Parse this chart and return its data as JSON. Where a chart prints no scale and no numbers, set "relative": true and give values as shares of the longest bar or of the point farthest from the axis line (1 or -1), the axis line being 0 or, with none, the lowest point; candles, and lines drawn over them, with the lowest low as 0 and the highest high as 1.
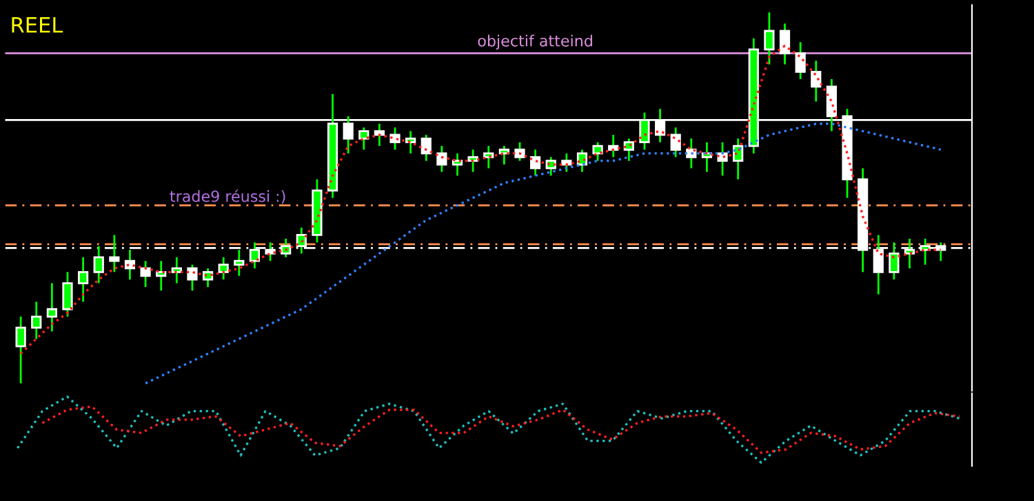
{
  "chart_data": [
    {
      "type": "candlestick",
      "relative": true,
      "categories": [
        null,
        null,
        null,
        null,
        null,
        null,
        null,
        null,
        null,
        null,
        null,
        null,
        null,
        null,
        null,
        null,
        null,
        null,
        null,
        null,
        null,
        null,
        null,
        null,
        null,
        null,
        null,
        null,
        null,
        null,
        null,
        null,
        null,
        null,
        null,
        null,
        null,
        null,
        null,
        null,
        null,
        null,
        null,
        null,
        null,
        null,
        null,
        null,
        null,
        null,
        null,
        null,
        null,
        null,
        null,
        null,
        null,
        null,
        null,
        null
      ],
      "ohlc": [
        [
          0.1,
          0.18,
          0,
          0.15
        ],
        [
          0.15,
          0.22,
          0.12,
          0.18
        ],
        [
          0.18,
          0.27,
          0.14,
          0.2
        ],
        [
          0.2,
          0.3,
          0.18,
          0.27
        ],
        [
          0.27,
          0.34,
          0.22,
          0.3
        ],
        [
          0.3,
          0.37,
          0.27,
          0.34
        ],
        [
          0.34,
          0.4,
          0.3,
          0.33
        ],
        [
          0.33,
          0.36,
          0.28,
          0.31
        ],
        [
          0.31,
          0.33,
          0.26,
          0.29
        ],
        [
          0.29,
          0.33,
          0.25,
          0.3
        ],
        [
          0.3,
          0.34,
          0.27,
          0.31
        ],
        [
          0.31,
          0.32,
          0.25,
          0.28
        ],
        [
          0.28,
          0.31,
          0.26,
          0.3
        ],
        [
          0.3,
          0.34,
          0.28,
          0.32
        ],
        [
          0.32,
          0.36,
          0.29,
          0.33
        ],
        [
          0.33,
          0.38,
          0.31,
          0.36
        ],
        [
          0.36,
          0.38,
          0.33,
          0.35
        ],
        [
          0.35,
          0.39,
          0.34,
          0.37
        ],
        [
          0.37,
          0.42,
          0.35,
          0.4
        ],
        [
          0.4,
          0.55,
          0.38,
          0.52
        ],
        [
          0.52,
          0.78,
          0.5,
          0.7
        ],
        [
          0.7,
          0.72,
          0.62,
          0.66
        ],
        [
          0.66,
          0.69,
          0.63,
          0.68
        ],
        [
          0.68,
          0.7,
          0.64,
          0.67
        ],
        [
          0.67,
          0.69,
          0.63,
          0.65
        ],
        [
          0.65,
          0.68,
          0.62,
          0.66
        ],
        [
          0.66,
          0.67,
          0.6,
          0.62
        ],
        [
          0.62,
          0.64,
          0.57,
          0.59
        ],
        [
          0.59,
          0.62,
          0.56,
          0.6
        ],
        [
          0.6,
          0.63,
          0.57,
          0.61
        ],
        [
          0.61,
          0.64,
          0.58,
          0.62
        ],
        [
          0.62,
          0.64,
          0.59,
          0.63
        ],
        [
          0.63,
          0.65,
          0.6,
          0.61
        ],
        [
          0.61,
          0.63,
          0.56,
          0.58
        ],
        [
          0.58,
          0.61,
          0.56,
          0.6
        ],
        [
          0.6,
          0.62,
          0.57,
          0.59
        ],
        [
          0.59,
          0.63,
          0.57,
          0.62
        ],
        [
          0.62,
          0.65,
          0.6,
          0.64
        ],
        [
          0.64,
          0.67,
          0.61,
          0.63
        ],
        [
          0.63,
          0.66,
          0.6,
          0.65
        ],
        [
          0.65,
          0.73,
          0.63,
          0.71
        ],
        [
          0.71,
          0.74,
          0.65,
          0.67
        ],
        [
          0.67,
          0.69,
          0.61,
          0.63
        ],
        [
          0.63,
          0.66,
          0.58,
          0.61
        ],
        [
          0.61,
          0.65,
          0.57,
          0.62
        ],
        [
          0.62,
          0.65,
          0.56,
          0.6
        ],
        [
          0.6,
          0.66,
          0.55,
          0.64
        ],
        [
          0.64,
          0.93,
          0.62,
          0.9
        ],
        [
          0.9,
          1.0,
          0.86,
          0.95
        ],
        [
          0.95,
          0.97,
          0.86,
          0.89
        ],
        [
          0.89,
          0.92,
          0.82,
          0.84
        ],
        [
          0.84,
          0.87,
          0.76,
          0.8
        ],
        [
          0.8,
          0.82,
          0.68,
          0.72
        ],
        [
          0.72,
          0.74,
          0.5,
          0.55
        ],
        [
          0.55,
          0.58,
          0.3,
          0.36
        ],
        [
          0.36,
          0.4,
          0.24,
          0.3
        ],
        [
          0.3,
          0.38,
          0.28,
          0.35
        ],
        [
          0.35,
          0.39,
          0.31,
          0.36
        ],
        [
          0.36,
          0.39,
          0.32,
          0.37
        ],
        [
          0.37,
          0.38,
          0.33,
          0.36
        ]
      ],
      "series": [
        {
          "type": "line",
          "color": "#ff2020",
          "line_style": "dotted",
          "values": [
            0.08,
            0.12,
            0.16,
            0.19,
            0.24,
            0.28,
            0.31,
            0.32,
            0.31,
            0.3,
            0.3,
            0.3,
            0.29,
            0.3,
            0.31,
            0.33,
            0.35,
            0.36,
            0.38,
            0.44,
            0.56,
            0.64,
            0.66,
            0.67,
            0.66,
            0.65,
            0.63,
            0.61,
            0.6,
            0.6,
            0.61,
            0.62,
            0.62,
            0.6,
            0.59,
            0.59,
            0.6,
            0.62,
            0.63,
            0.64,
            0.67,
            0.68,
            0.66,
            0.63,
            0.62,
            0.61,
            0.62,
            0.75,
            0.88,
            0.91,
            0.88,
            0.83,
            0.76,
            0.62,
            0.45,
            0.35,
            0.34,
            0.35,
            0.36,
            0.36
          ]
        },
        {
          "type": "line",
          "color": "#3080ff",
          "line_style": "dotted",
          "values": [
            null,
            null,
            null,
            null,
            null,
            null,
            null,
            null,
            0.0,
            0.02,
            0.04,
            0.06,
            0.08,
            0.1,
            0.12,
            0.14,
            0.16,
            0.18,
            0.2,
            0.23,
            0.26,
            0.29,
            0.32,
            0.35,
            0.38,
            0.41,
            0.44,
            0.46,
            0.48,
            0.5,
            0.52,
            0.54,
            0.55,
            0.56,
            0.57,
            0.58,
            0.59,
            0.6,
            0.6,
            0.61,
            0.62,
            0.62,
            0.62,
            0.62,
            0.62,
            0.62,
            0.63,
            0.65,
            0.67,
            0.68,
            0.69,
            0.7,
            0.7,
            0.69,
            0.68,
            0.67,
            0.66,
            0.65,
            0.64,
            0.63
          ]
        }
      ],
      "ref_lines": [
        {
          "axis": "y",
          "value": 0.89,
          "label": "objectif atteind",
          "color": "#e090e0",
          "line_style": "solid"
        },
        {
          "axis": "y",
          "value": 0.71,
          "label": null,
          "color": "#ffffff",
          "line_style": "solid"
        },
        {
          "axis": "y",
          "value": 0.48,
          "label": null,
          "color": "#ff9050",
          "line_style": "dashed"
        },
        {
          "axis": "y",
          "value": 0.375,
          "label": null,
          "color": "#ff9050",
          "line_style": "dashed"
        },
        {
          "axis": "y",
          "value": 0.365,
          "label": null,
          "color": "#ffffff",
          "line_style": "dashed"
        }
      ],
      "annotations": [
        "REEL",
        "trade9 réussi :)"
      ]
    },
    {
      "type": "line",
      "relative": true,
      "marker": "none",
      "line_style": "dotted",
      "categories": [
        null,
        null,
        null,
        null,
        null,
        null,
        null,
        null,
        null,
        null,
        null,
        null,
        null,
        null,
        null,
        null,
        null,
        null,
        null,
        null,
        null,
        null,
        null,
        null,
        null,
        null,
        null,
        null,
        null,
        null,
        null,
        null,
        null,
        null,
        null,
        null,
        null,
        null,
        null
      ],
      "series": [
        {
          "color": "#20c0c0",
          "values": [
            0.22,
            0.78,
            1,
            0.67,
            0.22,
            0.78,
            0.56,
            0.78,
            0.78,
            0.11,
            0.78,
            0.56,
            0.11,
            0.22,
            0.78,
            0.89,
            0.78,
            0.22,
            0.56,
            0.78,
            0.44,
            0.78,
            0.89,
            0.33,
            0.33,
            0.78,
            0.67,
            0.78,
            0.78,
            0.33,
            0,
            0.33,
            0.56,
            0.33,
            0.11,
            0.33,
            0.78,
            0.78,
            0.67
          ]
        },
        {
          "color": "#ff2020",
          "values": [
            null,
            0.6,
            0.8,
            0.85,
            0.5,
            0.45,
            0.65,
            0.65,
            0.7,
            0.4,
            0.5,
            0.6,
            0.3,
            0.25,
            0.55,
            0.8,
            0.8,
            0.45,
            0.45,
            0.7,
            0.55,
            0.65,
            0.8,
            0.5,
            0.35,
            0.6,
            0.7,
            0.7,
            0.75,
            0.5,
            0.15,
            0.2,
            0.45,
            0.4,
            0.2,
            0.25,
            0.6,
            0.75,
            0.7
          ]
        }
      ]
    }
  ]
}
